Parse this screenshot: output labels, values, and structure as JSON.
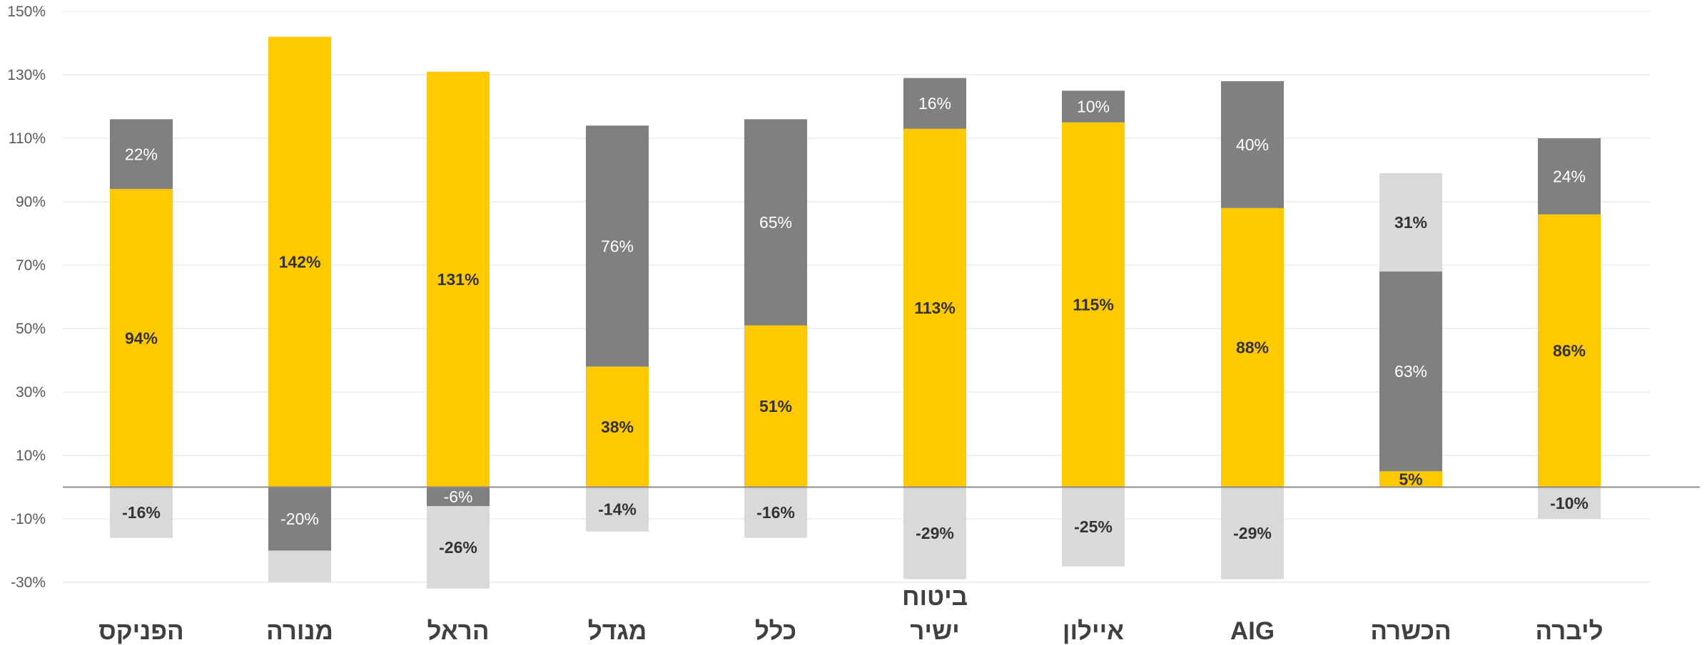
{
  "chart_data": {
    "type": "bar",
    "stacked": true,
    "categories": [
      "הפניקס",
      "מנורה",
      "הראל",
      "מגדל",
      "כלל",
      "ביטוח ישיר",
      "איילון",
      "AIG",
      "הכשרה",
      "ליברה"
    ],
    "category_lines": [
      [
        "הפניקס"
      ],
      [
        "מנורה"
      ],
      [
        "הראל"
      ],
      [
        "מגדל"
      ],
      [
        "כלל"
      ],
      [
        "ביטוח",
        "ישיר"
      ],
      [
        "איילון"
      ],
      [
        "AIG"
      ],
      [
        "הכשרה"
      ],
      [
        "ליברה"
      ]
    ],
    "ylim": [
      -30,
      150
    ],
    "yticks": [
      150,
      130,
      110,
      90,
      70,
      50,
      30,
      10,
      -10,
      -30
    ],
    "ytick_labels": [
      "150%",
      "130%",
      "110%",
      "90%",
      "70%",
      "50%",
      "30%",
      "10%",
      "-10%",
      "-30%"
    ],
    "grid": true,
    "legend": "none",
    "colors": {
      "yellow": "#FFC900",
      "dark_gray": "#808080",
      "light_gray": "#D9D9D9",
      "grid": "#E6E6E6",
      "zero_line": "#8C8C8C",
      "tick_text": "#595959",
      "category_text": "#404040",
      "label_dark": "#333333",
      "label_light": "#FFFFFF"
    },
    "series": [
      {
        "color": "yellow",
        "values": [
          94,
          142,
          131,
          38,
          51,
          113,
          115,
          88,
          5,
          86
        ],
        "labels": [
          "94%",
          "142%",
          "131%",
          "38%",
          "51%",
          "113%",
          "115%",
          "88%",
          "5%",
          "86%"
        ]
      },
      {
        "color": "dark_gray",
        "values": [
          22,
          0,
          0,
          76,
          65,
          16,
          10,
          40,
          63,
          24
        ],
        "labels": [
          "22%",
          "",
          "",
          "76%",
          "65%",
          "16%",
          "10%",
          "40%",
          "63%",
          "24%"
        ]
      },
      {
        "color": "light_gray",
        "values": [
          0,
          0,
          0,
          0,
          0,
          0,
          0,
          0,
          31,
          0
        ],
        "labels": [
          "",
          "",
          "",
          "",
          "",
          "",
          "",
          "",
          "31%",
          ""
        ]
      },
      {
        "color": "dark_gray",
        "values": [
          0,
          -20,
          -6,
          0,
          0,
          0,
          0,
          0,
          0,
          0
        ],
        "labels": [
          "",
          "-20%",
          "-6%",
          "",
          "",
          "",
          "",
          "",
          "",
          ""
        ]
      },
      {
        "color": "light_gray",
        "values": [
          -16,
          -10,
          -26,
          -14,
          -16,
          -29,
          -25,
          -29,
          0,
          -10
        ],
        "labels": [
          "-16%",
          "",
          "-26%",
          "-14%",
          "-16%",
          "-29%",
          "-25%",
          "-29%",
          "",
          "-10%"
        ]
      }
    ]
  }
}
